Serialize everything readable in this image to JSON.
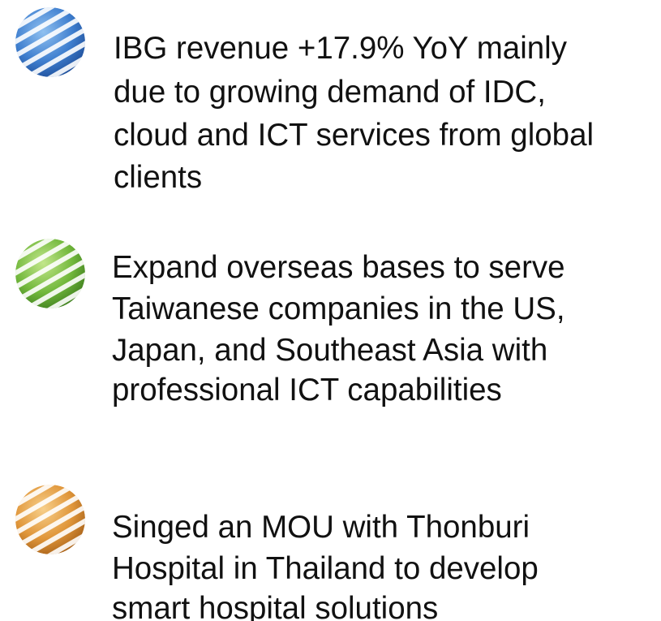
{
  "items": [
    {
      "lines": [
        "IBG revenue +17.9% YoY mainly",
        "due to growing demand of IDC,",
        "cloud and ICT services from global",
        "clients"
      ]
    },
    {
      "lines": [
        "Expand overseas bases to serve",
        "Taiwanese companies in the US,",
        "Japan, and Southeast Asia with",
        "professional ICT capabilities"
      ]
    },
    {
      "lines": [
        "Singed an MOU with Thonburi",
        "Hospital in Thailand to develop",
        "smart hospital solutions"
      ]
    }
  ]
}
